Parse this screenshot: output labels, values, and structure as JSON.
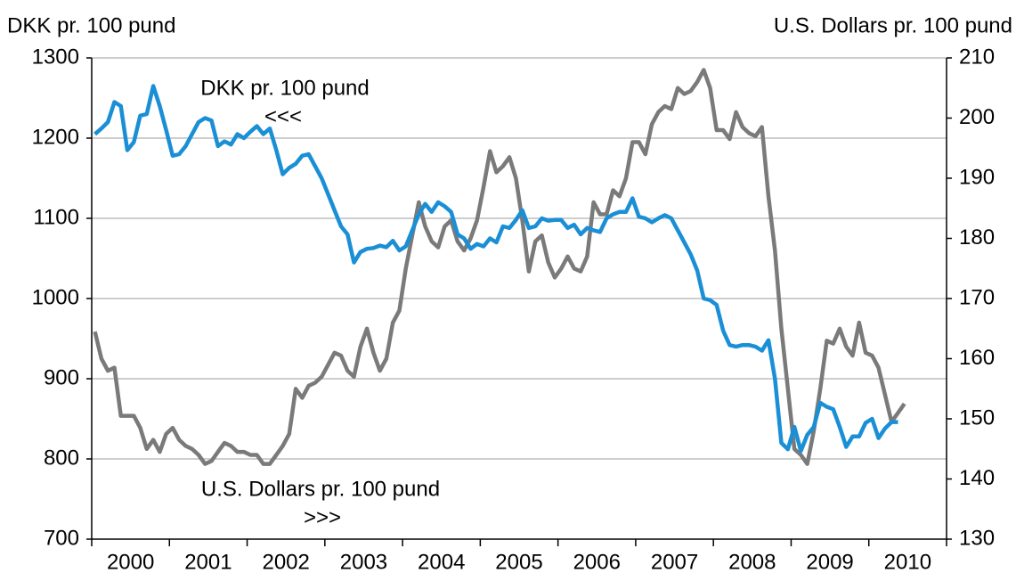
{
  "chart_data": {
    "type": "line",
    "y_label": "DKK pr. 100 pund",
    "y2_label": "U.S. Dollars pr. 100 pund",
    "annotations": [
      {
        "text": "DKK pr. 100 pund"
      },
      {
        "text": "<<<"
      },
      {
        "text": "U.S. Dollars pr. 100 pund"
      },
      {
        "text": ">>>"
      }
    ],
    "categories": [
      null,
      null,
      null,
      null,
      null,
      null,
      "2000",
      null,
      null,
      null,
      null,
      null,
      null,
      null,
      null,
      null,
      null,
      null,
      "2001",
      null,
      null,
      null,
      null,
      null,
      null,
      null,
      null,
      null,
      null,
      null,
      "2002",
      null,
      null,
      null,
      null,
      null,
      null,
      null,
      null,
      null,
      null,
      null,
      "2003",
      null,
      null,
      null,
      null,
      null,
      null,
      null,
      null,
      null,
      null,
      null,
      "2004",
      null,
      null,
      null,
      null,
      null,
      null,
      null,
      null,
      null,
      null,
      null,
      "2005",
      null,
      null,
      null,
      null,
      null,
      null,
      null,
      null,
      null,
      null,
      null,
      "2006",
      null,
      null,
      null,
      null,
      null,
      null,
      null,
      null,
      null,
      null,
      null,
      "2007",
      null,
      null,
      null,
      null,
      null,
      null,
      null,
      null,
      null,
      null,
      null,
      "2008",
      null,
      null,
      null,
      null,
      null,
      null,
      null,
      null,
      null,
      null,
      null,
      "2009",
      null,
      null,
      null,
      null,
      null,
      null,
      null,
      null,
      null,
      null,
      null,
      "2010",
      null,
      null,
      null,
      null,
      null
    ],
    "series": [
      {
        "name": "DKK pr. 100 pund",
        "color": "#1a8fd6",
        "axis": "y",
        "values": [
          1205,
          1212,
          1220,
          1245,
          1240,
          1185,
          1195,
          1228,
          1230,
          1265,
          1240,
          1210,
          1178,
          1180,
          1190,
          1205,
          1220,
          1225,
          1222,
          1190,
          1196,
          1192,
          1205,
          1200,
          1208,
          1215,
          1205,
          1212,
          1185,
          1155,
          1163,
          1168,
          1178,
          1180,
          1165,
          1150,
          1130,
          1110,
          1090,
          1080,
          1045,
          1058,
          1062,
          1063,
          1066,
          1064,
          1072,
          1060,
          1065,
          1085,
          1105,
          1118,
          1108,
          1120,
          1115,
          1108,
          1080,
          1075,
          1062,
          1068,
          1065,
          1075,
          1070,
          1090,
          1088,
          1098,
          1110,
          1088,
          1090,
          1100,
          1097,
          1098,
          1098,
          1088,
          1092,
          1080,
          1088,
          1085,
          1083,
          1100,
          1105,
          1108,
          1108,
          1125,
          1102,
          1100,
          1095,
          1100,
          1104,
          1100,
          1085,
          1070,
          1055,
          1035,
          1000,
          998,
          992,
          960,
          942,
          940,
          942,
          942,
          940,
          935,
          948,
          900,
          820,
          812,
          840,
          810,
          830,
          840,
          870,
          865,
          862,
          840,
          815,
          828,
          828,
          845,
          850,
          826,
          838,
          846,
          846,
          null,
          null,
          null,
          null,
          null,
          null,
          null
        ]
      },
      {
        "name": "U.S. Dollars pr. 100 pund",
        "color": "#7a7a7a",
        "axis": "y2",
        "values": [
          164.5,
          160,
          158,
          158.5,
          150.5,
          150.5,
          150.5,
          148.5,
          145,
          146.5,
          144.5,
          147.5,
          148.5,
          146.5,
          145.5,
          145,
          144,
          142.5,
          143,
          144.5,
          146,
          145.5,
          144.5,
          144.5,
          144,
          144,
          142.5,
          142.5,
          144,
          145.5,
          147.5,
          155,
          153.5,
          155.5,
          156,
          157,
          159,
          161,
          160.5,
          158,
          157,
          162,
          165,
          161,
          158,
          160,
          166,
          168,
          175,
          180.5,
          186,
          182,
          179.5,
          178.5,
          182,
          183,
          179.5,
          178,
          180,
          183,
          188.5,
          194.5,
          191,
          192,
          193.5,
          190,
          183,
          174.5,
          179.5,
          180.5,
          176,
          173.5,
          175,
          177,
          175,
          174.5,
          177,
          186,
          184,
          184,
          188,
          187,
          190,
          196,
          196,
          194,
          199,
          201,
          202,
          201.5,
          205,
          204,
          204.5,
          206,
          208,
          205,
          198,
          198,
          196.5,
          201,
          198.5,
          197.5,
          197,
          198.5,
          187,
          178,
          165,
          155,
          145,
          144,
          142.5,
          148,
          155,
          163,
          162.5,
          165,
          162,
          160.5,
          166,
          161,
          160.5,
          158.5,
          154,
          149.5,
          151,
          152.5,
          null,
          null,
          null,
          null,
          null,
          null
        ]
      }
    ],
    "ylim": [
      700,
      1300
    ],
    "yticks": [
      700,
      800,
      900,
      1000,
      1100,
      1200,
      1300
    ],
    "y2lim": [
      130,
      210
    ],
    "y2ticks": [
      130,
      140,
      150,
      160,
      170,
      180,
      190,
      200,
      210
    ],
    "grid": true
  }
}
